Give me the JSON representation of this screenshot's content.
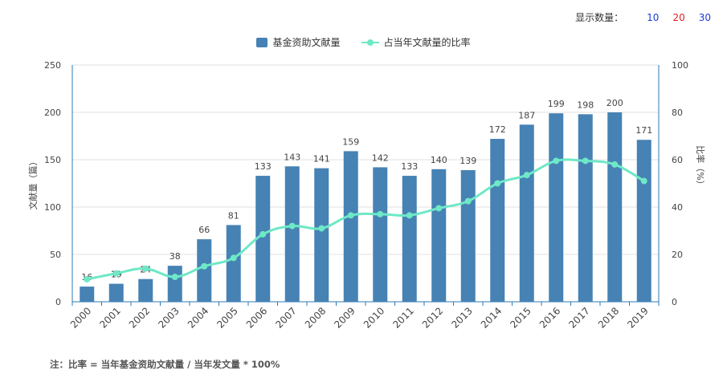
{
  "display_count": {
    "label": "显示数量：",
    "options": [
      {
        "text": "10",
        "color": "#1a3bd6"
      },
      {
        "text": "20",
        "color": "#e02020"
      },
      {
        "text": "30",
        "color": "#1a3bd6"
      }
    ]
  },
  "chart_data": {
    "type": "bar",
    "categories": [
      "2000",
      "2001",
      "2002",
      "2003",
      "2004",
      "2005",
      "2006",
      "2007",
      "2008",
      "2009",
      "2010",
      "2011",
      "2012",
      "2013",
      "2014",
      "2015",
      "2016",
      "2017",
      "2018",
      "2019"
    ],
    "series": [
      {
        "name": "基金资助文献量",
        "type": "bar",
        "axis": "left",
        "color": "#4682b4",
        "values": [
          16,
          19,
          24,
          38,
          66,
          81,
          133,
          143,
          141,
          159,
          142,
          133,
          140,
          139,
          172,
          187,
          199,
          198,
          200,
          171
        ],
        "data_labels": [
          "16",
          "19",
          "24",
          "38",
          "66",
          "81",
          "133",
          "143",
          "141",
          "159",
          "142",
          "133",
          "140",
          "139",
          "172",
          "187",
          "199",
          "198",
          "200",
          "171"
        ]
      },
      {
        "name": "占当年文献量的比率",
        "type": "line",
        "axis": "right",
        "color": "#6ee8c6",
        "values": [
          9.5,
          12,
          14,
          10.5,
          15,
          18.5,
          28.5,
          32,
          31,
          36.5,
          37,
          36.5,
          39.5,
          42.5,
          50,
          53.5,
          59.5,
          59.5,
          58,
          51
        ]
      }
    ],
    "y_left": {
      "label": "文献量（篇）",
      "ylim": [
        0,
        250
      ],
      "ticks": [
        "0",
        "50",
        "100",
        "150",
        "200",
        "250"
      ]
    },
    "y_right": {
      "label": "比率（%）",
      "ylim": [
        0,
        100
      ],
      "ticks": [
        "0",
        "20",
        "40",
        "60",
        "80",
        "100"
      ]
    },
    "grid": true,
    "legend": "top-center"
  },
  "footer_note": "注：比率 = 当年基金资助文献量 / 当年发文量 * 100%"
}
